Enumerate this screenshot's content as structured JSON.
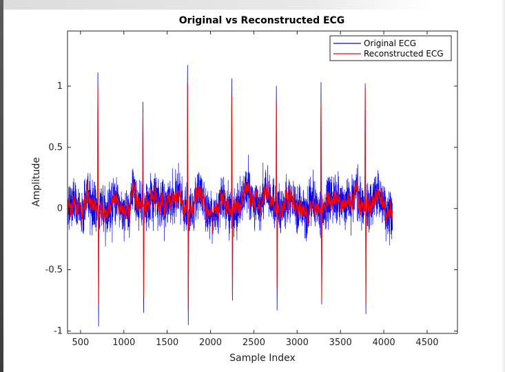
{
  "chart_data": {
    "type": "line",
    "title": "Original vs Reconstructed ECG",
    "xlabel": "Sample Index",
    "ylabel": "Amplitude",
    "xlim": [
      350,
      4850
    ],
    "ylim": [
      -1.02,
      1.45
    ],
    "xticks": [
      500,
      1000,
      1500,
      2000,
      2500,
      3000,
      3500,
      4000,
      4500
    ],
    "yticks": [
      -1,
      -0.5,
      0,
      0.5,
      1
    ],
    "grid": false,
    "legend_position": "top-right",
    "x_range": [
      350,
      4100
    ],
    "r_peaks": [
      {
        "x": 700,
        "orig_max": 1.11,
        "orig_min": -0.96,
        "rec_max": 0.98,
        "rec_min": -0.78
      },
      {
        "x": 1220,
        "orig_max": 0.87,
        "orig_min": -0.85,
        "rec_max": 0.78,
        "rec_min": -0.72
      },
      {
        "x": 1735,
        "orig_max": 1.17,
        "orig_min": -0.95,
        "rec_max": 1.02,
        "rec_min": -0.82
      },
      {
        "x": 2245,
        "orig_max": 1.06,
        "orig_min": -0.75,
        "rec_max": 0.92,
        "rec_min": -0.72
      },
      {
        "x": 2760,
        "orig_max": 1.0,
        "orig_min": -0.83,
        "rec_max": 0.88,
        "rec_min": -0.64
      },
      {
        "x": 3275,
        "orig_max": 1.03,
        "orig_min": -0.78,
        "rec_max": 0.86,
        "rec_min": -0.75
      },
      {
        "x": 3785,
        "orig_max": 1.02,
        "orig_min": -0.86,
        "rec_max": 0.98,
        "rec_min": -0.78
      }
    ],
    "series": [
      {
        "name": "Original ECG",
        "color": "#0000ff"
      },
      {
        "name": "Reconstructed ECG",
        "color": "#ff0000"
      }
    ]
  }
}
